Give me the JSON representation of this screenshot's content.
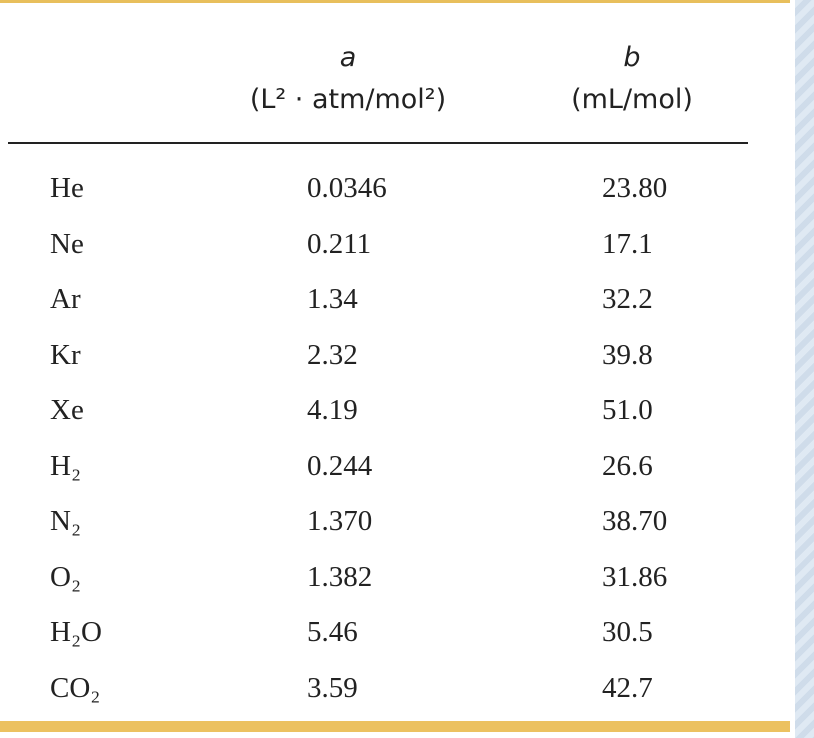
{
  "table": {
    "columns": [
      {
        "symbol": "a",
        "unit": "(L² · atm/mol²)"
      },
      {
        "symbol": "b",
        "unit": "(mL/mol)"
      }
    ],
    "rows": [
      [
        "He",
        "0.0346",
        "23.80"
      ],
      [
        "Ne",
        "0.211",
        "17.1"
      ],
      [
        "Ar",
        "1.34",
        "32.2"
      ],
      [
        "Kr",
        "2.32",
        "39.8"
      ],
      [
        "Xe",
        "4.19",
        "51.0"
      ],
      [
        "H₂",
        "0.244",
        "26.6"
      ],
      [
        "N₂",
        "1.370",
        "38.70"
      ],
      [
        "O₂",
        "1.382",
        "31.86"
      ],
      [
        "H₂O",
        "5.46",
        "30.5"
      ],
      [
        "CO₂",
        "3.59",
        "42.7"
      ]
    ]
  }
}
